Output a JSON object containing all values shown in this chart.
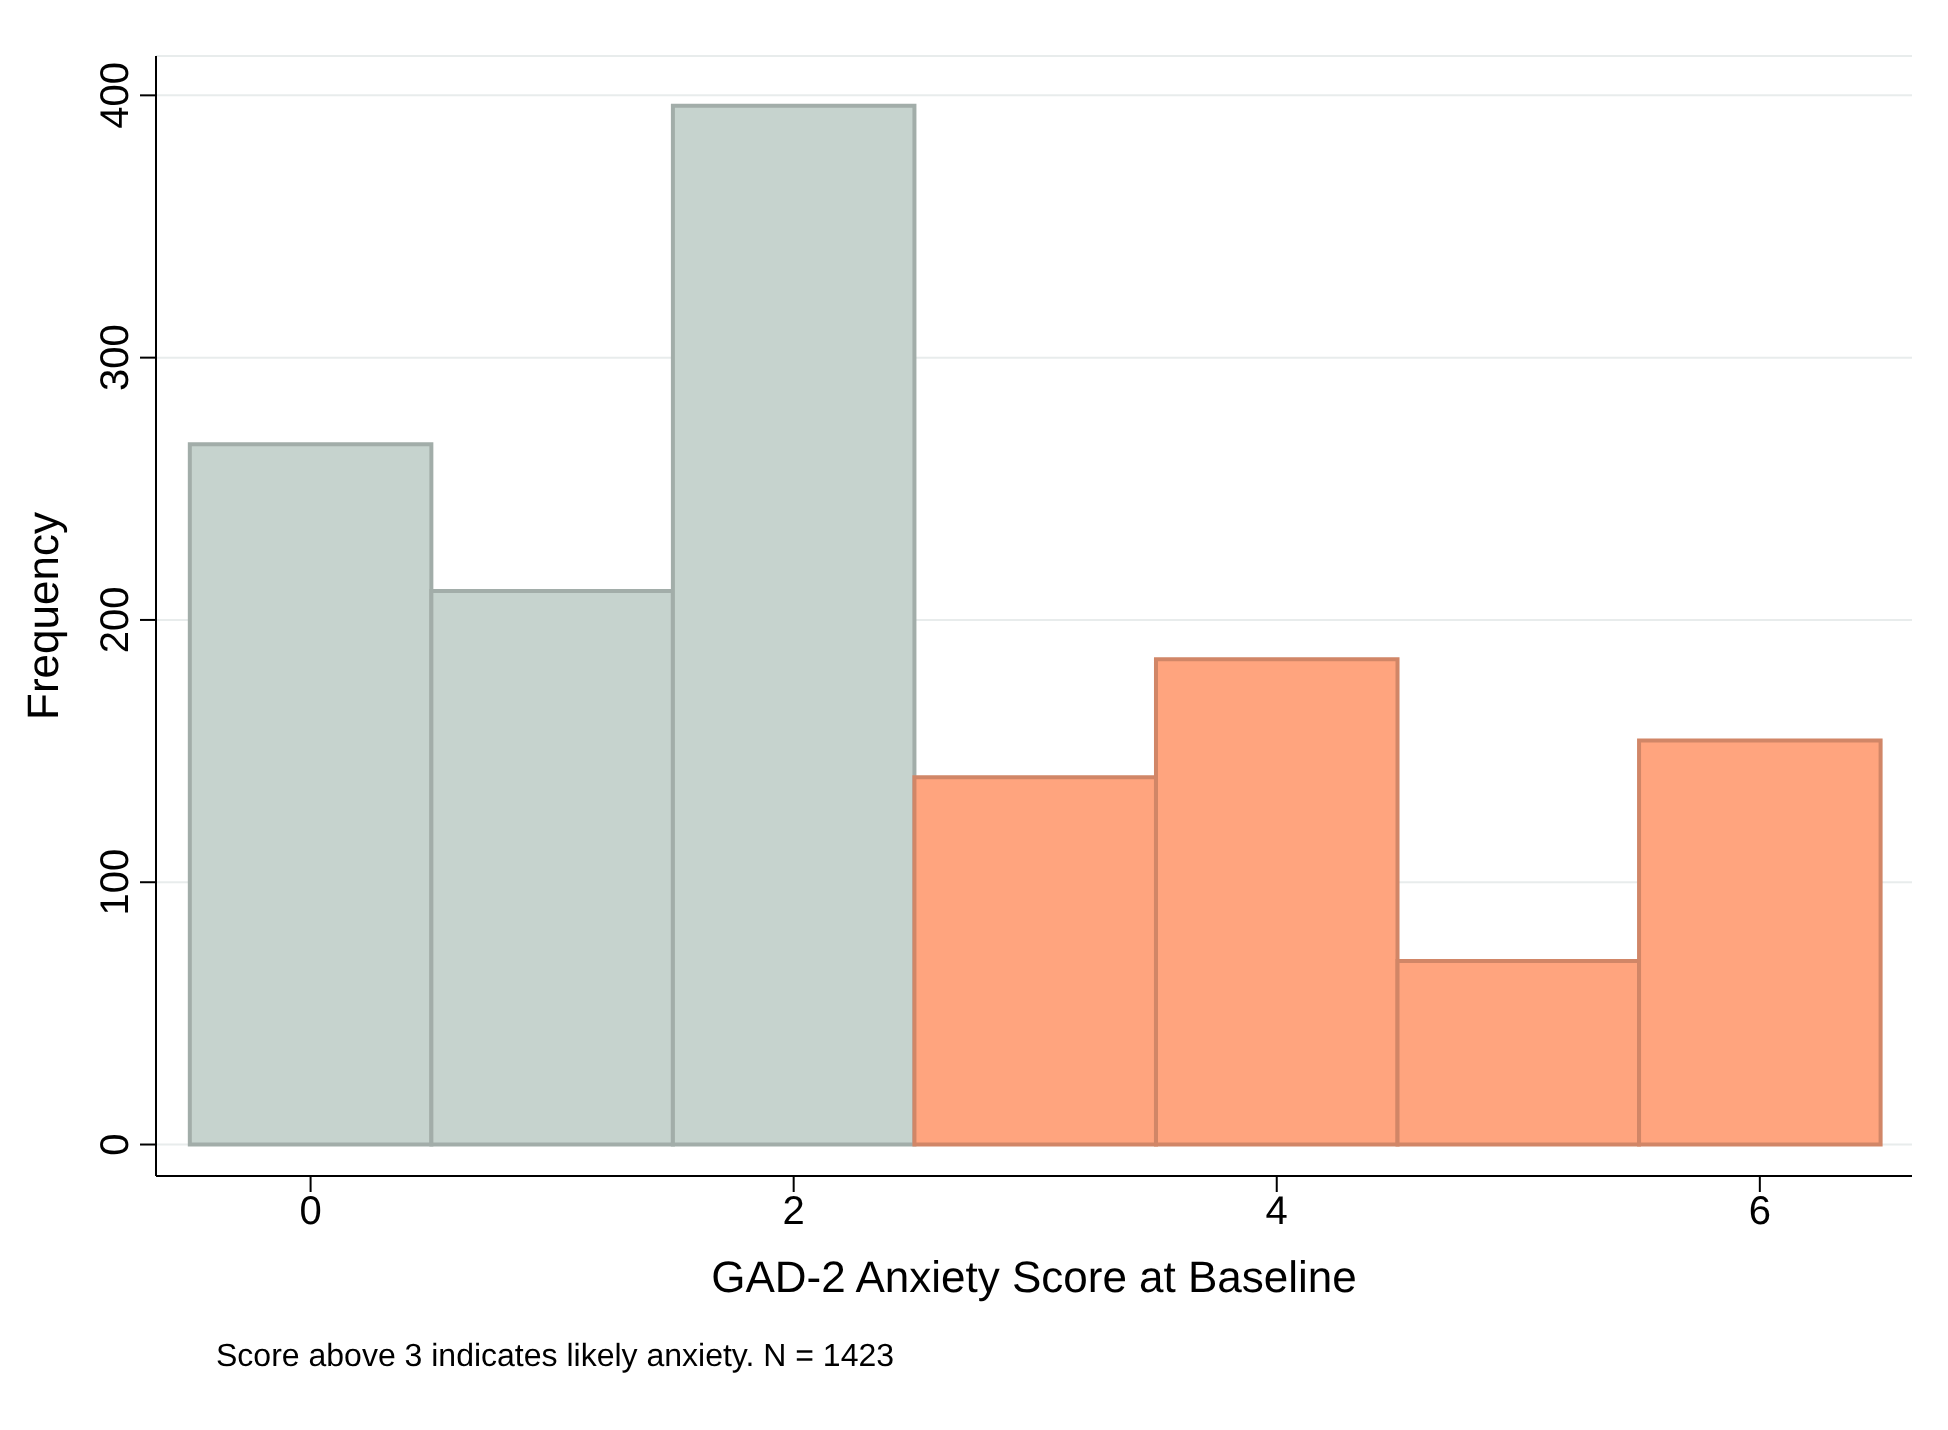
{
  "chart_data": {
    "type": "histogram",
    "xlabel": "GAD-2 Anxiety Score at Baseline",
    "ylabel": "Frequency",
    "bins": [
      -0.5,
      0.5,
      1.5,
      2.5,
      3.5,
      4.5,
      5.5,
      6.5
    ],
    "values": [
      267,
      211,
      396,
      140,
      185,
      70,
      154
    ],
    "colors": [
      "#c6d3ce",
      "#c6d3ce",
      "#c6d3ce",
      "#ffa47e",
      "#ffa47e",
      "#ffa47e",
      "#ffa47e"
    ],
    "xlim": [
      -0.64,
      6.63
    ],
    "xticks": [
      0,
      2,
      4,
      6
    ],
    "ylim": [
      -12,
      415
    ],
    "yticks": [
      0,
      100,
      200,
      300,
      400
    ],
    "grid": "y",
    "annotations": [
      "Score above 3 indicates likely anxiety. N = 1423"
    ]
  }
}
